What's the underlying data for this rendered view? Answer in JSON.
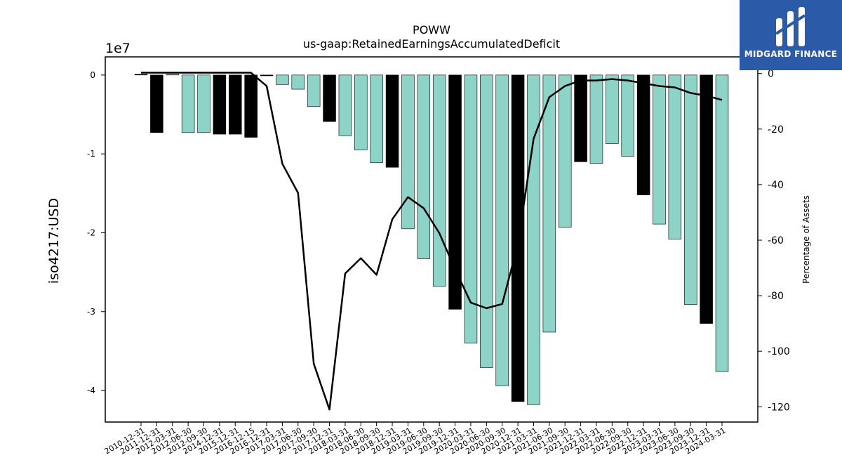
{
  "chart_data": {
    "type": "bar",
    "title": "POWW",
    "subtitle": "us-gaap:RetainedEarningsAccumulatedDeficit",
    "ylabel": "iso4217:USD",
    "y_multiplier": "1e7",
    "y2label": "Percentage of Assets",
    "ylim": [
      -4.4,
      0.23
    ],
    "y2lim": [
      -125.5,
      6.0
    ],
    "yticks": [
      0,
      -1,
      -2,
      -3,
      -4
    ],
    "y2ticks": [
      0,
      -20,
      -40,
      -60,
      -80,
      -100,
      -120
    ],
    "categories": [
      "2010-12-31",
      "2011-12-31",
      "2012-03-31",
      "2012-06-30",
      "2012-09-30",
      "2014-12-31",
      "2015-12-31",
      "2016-12-15",
      "2016-12-31",
      "2017-03-31",
      "2017-06-30",
      "2017-09-30",
      "2017-12-31",
      "2018-03-31",
      "2018-06-30",
      "2018-09-30",
      "2018-12-31",
      "2019-03-31",
      "2019-06-30",
      "2019-09-30",
      "2019-12-31",
      "2020-03-31",
      "2020-06-30",
      "2020-09-30",
      "2020-12-31",
      "2021-03-31",
      "2021-06-30",
      "2021-09-30",
      "2021-12-31",
      "2022-03-31",
      "2022-06-30",
      "2022-09-30",
      "2022-12-31",
      "2023-03-31",
      "2023-06-30",
      "2023-09-30",
      "2023-12-31",
      "2024-03-31"
    ],
    "series": [
      {
        "kind": "bar",
        "values": [
          0.01,
          -0.73,
          0.01,
          -0.73,
          -0.73,
          -0.75,
          -0.75,
          -0.79,
          -0.01,
          -0.12,
          -0.18,
          -0.4,
          -0.59,
          -0.77,
          -0.95,
          -1.11,
          -1.17,
          -1.95,
          -2.33,
          -2.68,
          -2.97,
          -3.4,
          -3.71,
          -3.94,
          -4.14,
          -4.18,
          -3.26,
          -1.93,
          -1.1,
          -1.12,
          -0.87,
          -1.03,
          -1.52,
          -1.89,
          -2.08,
          -2.91,
          -3.15,
          -3.76
        ],
        "bar_colors": [
          "#000000",
          "#000000",
          "#8dd3c7",
          "#8dd3c7",
          "#8dd3c7",
          "#000000",
          "#000000",
          "#000000",
          "#000000",
          "#8dd3c7",
          "#8dd3c7",
          "#8dd3c7",
          "#000000",
          "#8dd3c7",
          "#8dd3c7",
          "#8dd3c7",
          "#000000",
          "#8dd3c7",
          "#8dd3c7",
          "#8dd3c7",
          "#000000",
          "#8dd3c7",
          "#8dd3c7",
          "#8dd3c7",
          "#000000",
          "#8dd3c7",
          "#8dd3c7",
          "#8dd3c7",
          "#000000",
          "#8dd3c7",
          "#8dd3c7",
          "#8dd3c7",
          "#000000",
          "#8dd3c7",
          "#8dd3c7",
          "#8dd3c7",
          "#000000",
          "#8dd3c7"
        ]
      },
      {
        "kind": "line",
        "axis": "secondary",
        "color": "#000000",
        "values": [
          0.3,
          0.3,
          0.3,
          0.3,
          0.3,
          0.3,
          0.3,
          0.3,
          -4.5,
          -32.5,
          -43.0,
          -104.5,
          -121.0,
          -72.0,
          -66.5,
          -72.5,
          -52.5,
          -44.5,
          -48.5,
          -57.5,
          -70.5,
          -82.5,
          -84.5,
          -83.0,
          -61.5,
          -23.5,
          -8.5,
          -4.5,
          -2.5,
          -2.5,
          -2.0,
          -2.5,
          -3.5,
          -4.5,
          -5.0,
          -7.0,
          -8.0,
          -9.5
        ]
      }
    ],
    "grid": false,
    "legend": "none"
  },
  "logo": {
    "text": "MIDGARD FINANCE",
    "color": "#2a5aa8"
  }
}
